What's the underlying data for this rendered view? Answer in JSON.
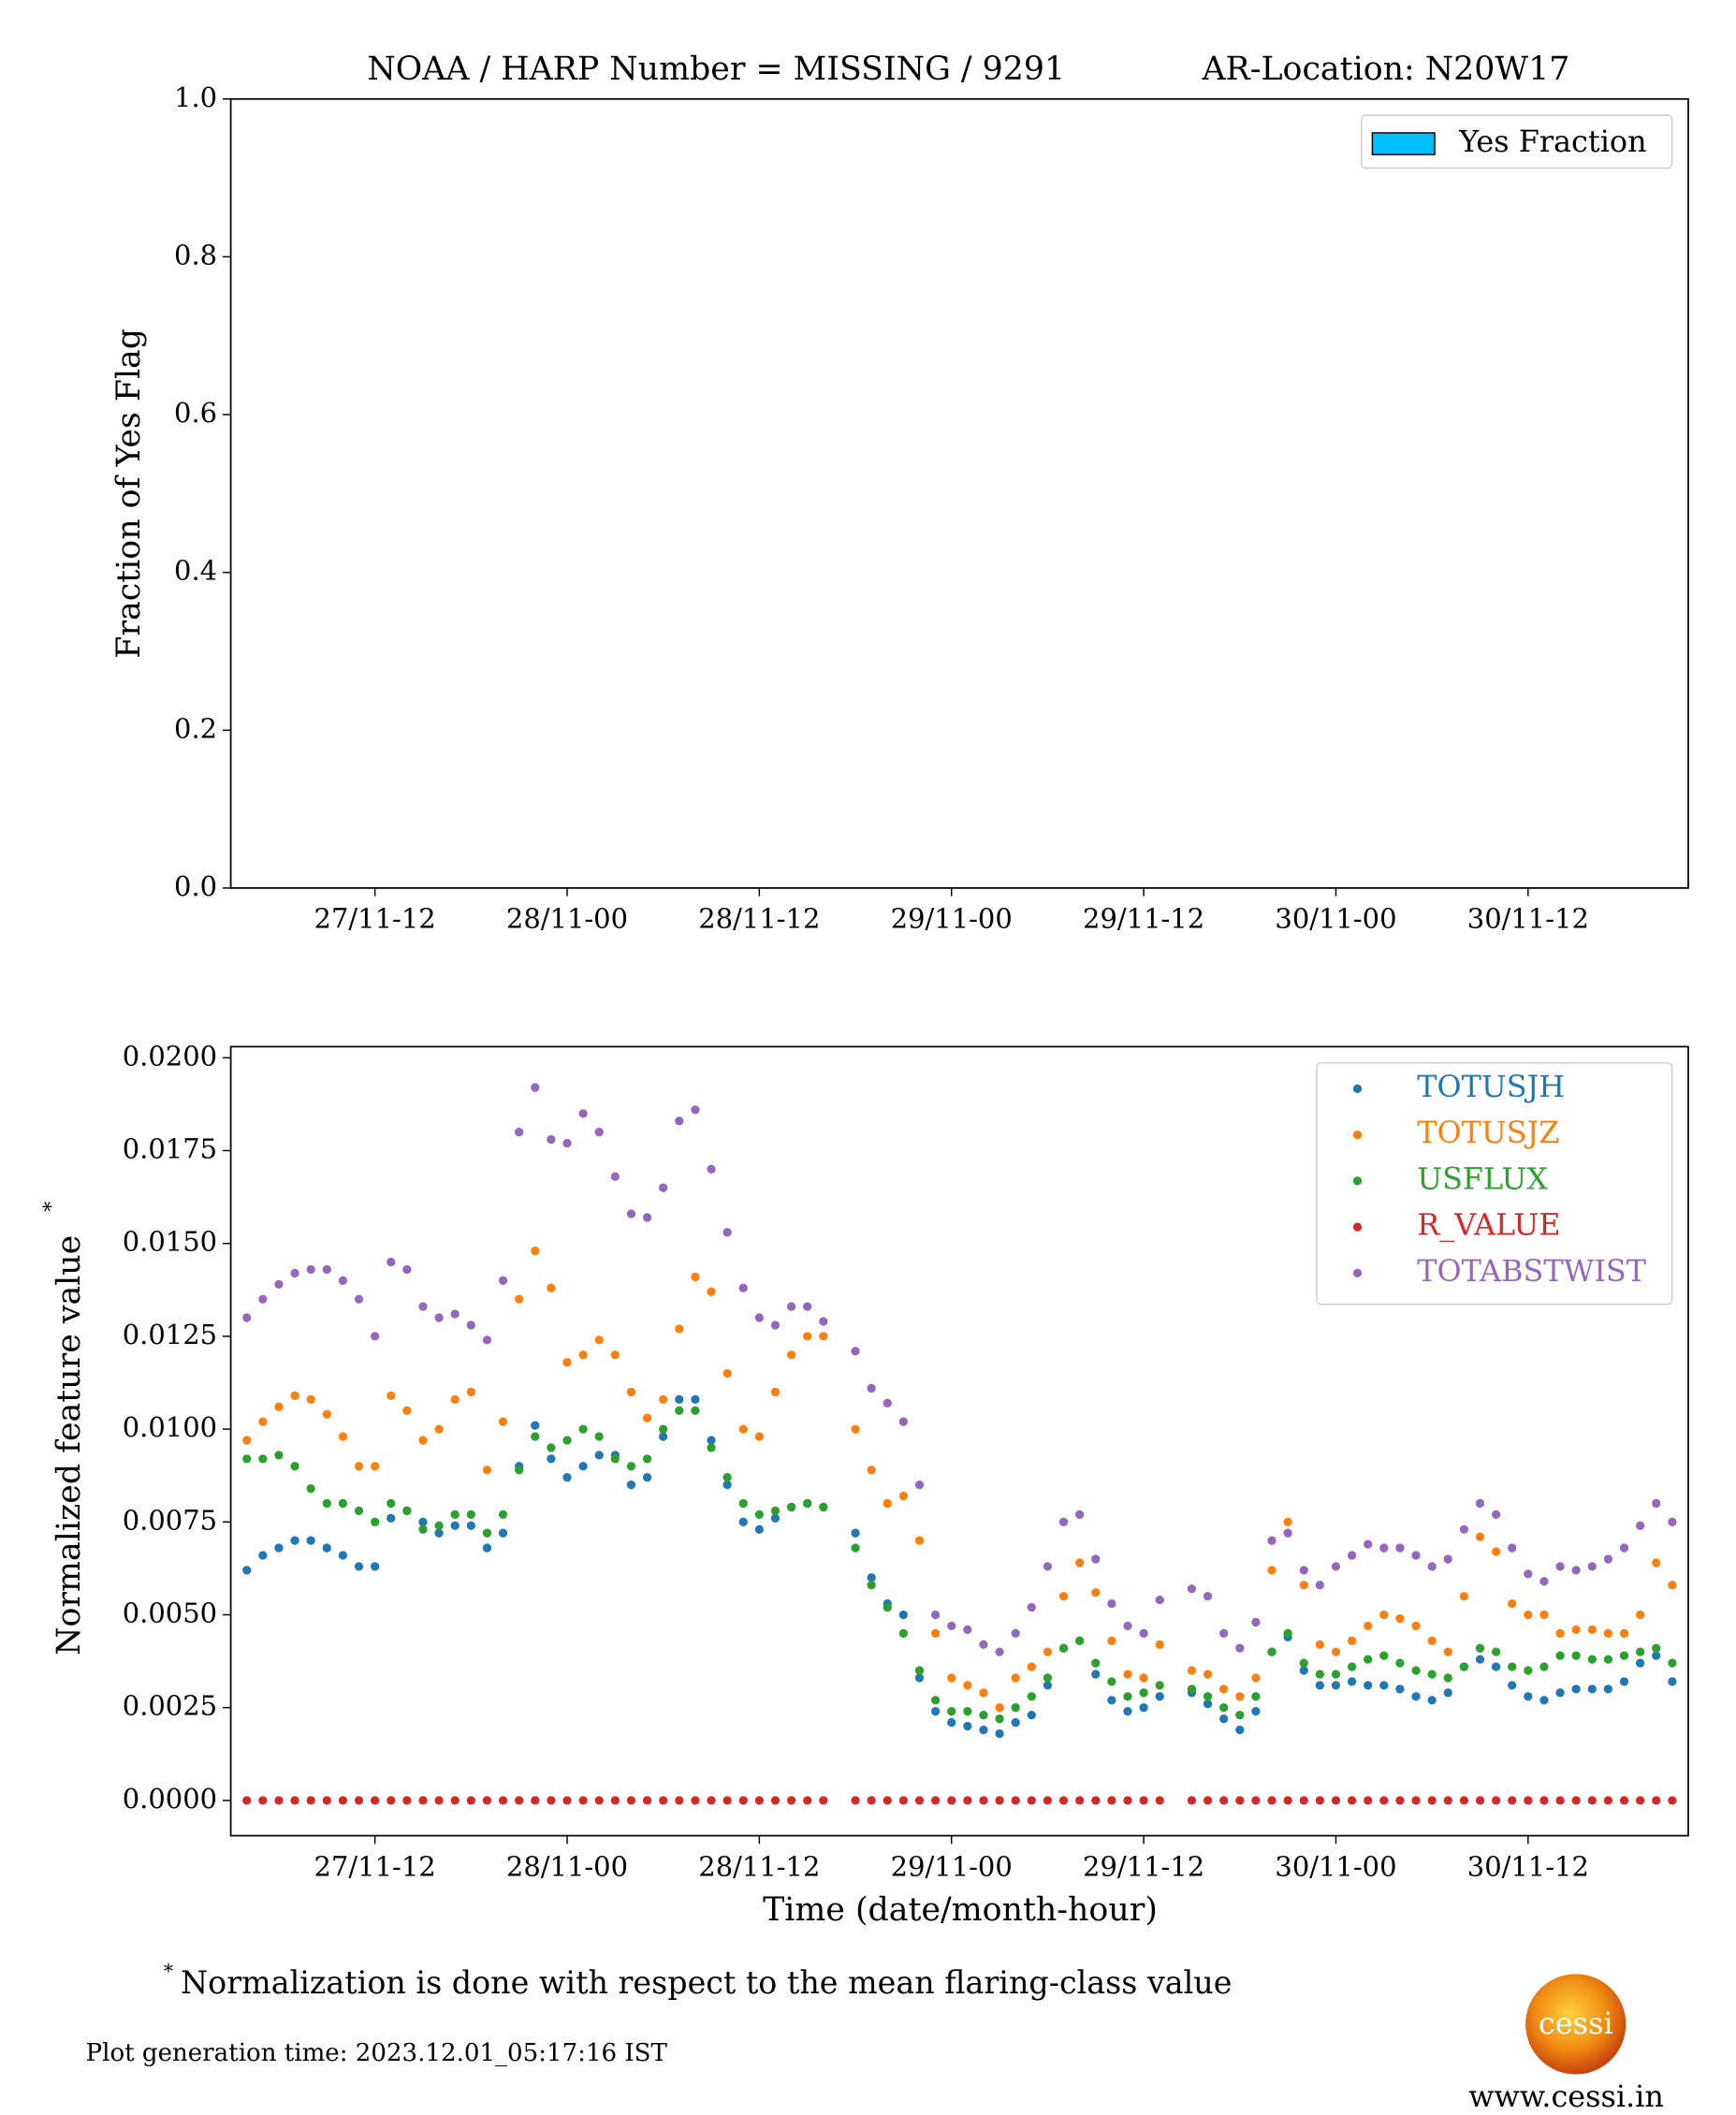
{
  "chart_data": [
    {
      "type": "bar",
      "title": "NOAA / HARP Number = MISSING / 9291",
      "title_right": "AR-Location: N20W17",
      "ylabel": "Fraction of Yes Flag",
      "series": [
        {
          "name": "Yes Fraction",
          "color": "#00bfff"
        }
      ],
      "legend": "upper right",
      "xlim": [
        "27/11-03",
        "30/11-22"
      ],
      "xticks": [
        "27/11-12",
        "28/11-00",
        "28/11-12",
        "29/11-00",
        "29/11-12",
        "30/11-00",
        "30/11-12"
      ],
      "ylim": [
        0,
        1
      ],
      "yticks": [
        {
          "value": 0,
          "label": "0.0"
        },
        0.2,
        0.4,
        0.6,
        0.8,
        {
          "value": 1,
          "label": "1.0"
        }
      ]
    },
    {
      "type": "scatter",
      "xlabel": "Time (date/month-hour)",
      "ylabel": "Normalized feature value",
      "ylabel_mark": "*",
      "legend": "upper right",
      "xlim": [
        "27/11-03",
        "30/11-22"
      ],
      "xticks": [
        "27/11-12",
        "28/11-00",
        "28/11-12",
        "29/11-00",
        "29/11-12",
        "30/11-00",
        "30/11-12"
      ],
      "ylim": [
        -0.00095,
        0.0203
      ],
      "yticks": [
        {
          "value": 0,
          "label": "0.0000"
        },
        {
          "value": 0.0025,
          "label": "0.0025"
        },
        {
          "value": 0.005,
          "label": "0.0050"
        },
        {
          "value": 0.0075,
          "label": "0.0075"
        },
        {
          "value": 0.01,
          "label": "0.0100"
        },
        {
          "value": 0.0125,
          "label": "0.0125"
        },
        {
          "value": 0.015,
          "label": "0.0150"
        },
        {
          "value": 0.0175,
          "label": "0.0175"
        },
        {
          "value": 0.02,
          "label": "0.0200"
        }
      ],
      "x": [
        "27/11-04",
        "27/11-05",
        "27/11-06",
        "27/11-07",
        "27/11-08",
        "27/11-09",
        "27/11-10",
        "27/11-11",
        "27/11-12",
        "27/11-13",
        "27/11-14",
        "27/11-15",
        "27/11-16",
        "27/11-17",
        "27/11-18",
        "27/11-19",
        "27/11-20",
        "27/11-21",
        "27/11-22",
        "27/11-23",
        "28/11-00",
        "28/11-01",
        "28/11-02",
        "28/11-03",
        "28/11-04",
        "28/11-05",
        "28/11-06",
        "28/11-07",
        "28/11-08",
        "28/11-09",
        "28/11-10",
        "28/11-11",
        "28/11-12",
        "28/11-13",
        "28/11-14",
        "28/11-15",
        "28/11-16",
        "28/11-17",
        "28/11-18",
        "28/11-19",
        "28/11-20",
        "28/11-21",
        "28/11-22",
        "28/11-23",
        "29/11-00",
        "29/11-01",
        "29/11-02",
        "29/11-03",
        "29/11-04",
        "29/11-05",
        "29/11-06",
        "29/11-07",
        "29/11-08",
        "29/11-09",
        "29/11-10",
        "29/11-11",
        "29/11-12",
        "29/11-13",
        "29/11-14",
        "29/11-15",
        "29/11-16",
        "29/11-17",
        "29/11-18",
        "29/11-19",
        "29/11-20",
        "29/11-21",
        "29/11-22",
        "29/11-23",
        "30/11-00",
        "30/11-01",
        "30/11-02",
        "30/11-03",
        "30/11-04",
        "30/11-05",
        "30/11-06",
        "30/11-07",
        "30/11-08",
        "30/11-09",
        "30/11-10",
        "30/11-11",
        "30/11-12",
        "30/11-13",
        "30/11-14",
        "30/11-15",
        "30/11-16",
        "30/11-17",
        "30/11-18",
        "30/11-19",
        "30/11-20",
        "30/11-21"
      ],
      "series": [
        {
          "name": "TOTUSJH",
          "color": "#1f77b4",
          "values": [
            0.0062,
            0.0066,
            0.0068,
            0.007,
            0.007,
            0.0068,
            0.0066,
            0.0063,
            0.0063,
            0.0076,
            0.0078,
            0.0075,
            0.0072,
            0.0074,
            0.0074,
            0.0068,
            0.0072,
            0.009,
            0.0101,
            0.0092,
            0.0087,
            0.009,
            0.0093,
            0.0093,
            0.0085,
            0.0087,
            0.0098,
            0.0108,
            0.0108,
            0.0097,
            0.0085,
            0.0075,
            0.0073,
            0.0076,
            0.0079,
            0.008,
            0.0079,
            null,
            0.0072,
            0.006,
            0.0053,
            0.005,
            0.0033,
            0.0024,
            0.0021,
            0.002,
            0.0019,
            0.0018,
            0.0021,
            0.0023,
            0.0031,
            0.0041,
            0.0043,
            0.0034,
            0.0027,
            0.0024,
            0.0025,
            0.0028,
            null,
            0.0029,
            0.0026,
            0.0022,
            0.0019,
            0.0024,
            0.004,
            0.0044,
            0.0035,
            0.0031,
            0.0031,
            0.0032,
            0.0031,
            0.0031,
            0.003,
            0.0028,
            0.0027,
            0.0029,
            0.0036,
            0.0038,
            0.0036,
            0.0031,
            0.0028,
            0.0027,
            0.0029,
            0.003,
            0.003,
            0.003,
            0.0032,
            0.0037,
            0.0039,
            0.0032
          ]
        },
        {
          "name": "TOTUSJZ",
          "color": "#ff7f0e",
          "values": [
            0.0097,
            0.0102,
            0.0106,
            0.0109,
            0.0108,
            0.0104,
            0.0098,
            0.009,
            0.009,
            0.0109,
            0.0105,
            0.0097,
            0.01,
            0.0108,
            0.011,
            0.0089,
            0.0102,
            0.0135,
            0.0148,
            0.0138,
            0.0118,
            0.012,
            0.0124,
            0.012,
            0.011,
            0.0103,
            0.0108,
            0.0127,
            0.0141,
            0.0137,
            0.0115,
            0.01,
            0.0098,
            0.011,
            0.012,
            0.0125,
            0.0125,
            null,
            0.01,
            0.0089,
            0.008,
            0.0082,
            0.007,
            0.0045,
            0.0033,
            0.0031,
            0.0029,
            0.0025,
            0.0033,
            0.0036,
            0.004,
            0.0055,
            0.0064,
            0.0056,
            0.0043,
            0.0034,
            0.0033,
            0.0042,
            null,
            0.0035,
            0.0034,
            0.003,
            0.0028,
            0.0033,
            0.0062,
            0.0075,
            0.0058,
            0.0042,
            0.004,
            0.0043,
            0.0047,
            0.005,
            0.0049,
            0.0047,
            0.0043,
            0.004,
            0.0055,
            0.0071,
            0.0067,
            0.0053,
            0.005,
            0.005,
            0.0045,
            0.0046,
            0.0046,
            0.0045,
            0.0045,
            0.005,
            0.0064,
            0.0058
          ]
        },
        {
          "name": "USFLUX",
          "color": "#2ca02c",
          "values": [
            0.0092,
            0.0092,
            0.0093,
            0.009,
            0.0084,
            0.008,
            0.008,
            0.0078,
            0.0075,
            0.008,
            0.0078,
            0.0073,
            0.0074,
            0.0077,
            0.0077,
            0.0072,
            0.0077,
            0.0089,
            0.0098,
            0.0095,
            0.0097,
            0.01,
            0.0098,
            0.0092,
            0.009,
            0.0092,
            0.01,
            0.0105,
            0.0105,
            0.0095,
            0.0087,
            0.008,
            0.0077,
            0.0078,
            0.0079,
            0.008,
            0.0079,
            null,
            0.0068,
            0.0058,
            0.0052,
            0.0045,
            0.0035,
            0.0027,
            0.0024,
            0.0024,
            0.0023,
            0.0022,
            0.0025,
            0.0028,
            0.0033,
            0.0041,
            0.0043,
            0.0037,
            0.0032,
            0.0028,
            0.0029,
            0.0031,
            null,
            0.003,
            0.0028,
            0.0025,
            0.0023,
            0.0028,
            0.004,
            0.0045,
            0.0037,
            0.0034,
            0.0034,
            0.0036,
            0.0038,
            0.0039,
            0.0037,
            0.0035,
            0.0034,
            0.0033,
            0.0036,
            0.0041,
            0.004,
            0.0036,
            0.0035,
            0.0036,
            0.0039,
            0.0039,
            0.0038,
            0.0038,
            0.0039,
            0.004,
            0.0041,
            0.0037
          ]
        },
        {
          "name": "R_VALUE",
          "color": "#d62728",
          "values": [
            0,
            0,
            0,
            0,
            0,
            0,
            0,
            0,
            0,
            0,
            0,
            0,
            0,
            0,
            0,
            0,
            0,
            0,
            0,
            0,
            0,
            0,
            0,
            0,
            0,
            0,
            0,
            0,
            0,
            0,
            0,
            0,
            0,
            0,
            0,
            0,
            0,
            null,
            0,
            0,
            0,
            0,
            0,
            0,
            0,
            0,
            0,
            0,
            0,
            0,
            0,
            0,
            0,
            0,
            0,
            0,
            0,
            0,
            null,
            0,
            0,
            0,
            0,
            0,
            0,
            0,
            0,
            0,
            0,
            0,
            0,
            0,
            0,
            0,
            0,
            0,
            0,
            0,
            0,
            0,
            0,
            0,
            0,
            0,
            0,
            0,
            0,
            0,
            0,
            0
          ]
        },
        {
          "name": "TOTABSTWIST",
          "color": "#9467bd",
          "values": [
            0.013,
            0.0135,
            0.0139,
            0.0142,
            0.0143,
            0.0143,
            0.014,
            0.0135,
            0.0125,
            0.0145,
            0.0143,
            0.0133,
            0.013,
            0.0131,
            0.0128,
            0.0124,
            0.014,
            0.018,
            0.0192,
            0.0178,
            0.0177,
            0.0185,
            0.018,
            0.0168,
            0.0158,
            0.0157,
            0.0165,
            0.0183,
            0.0186,
            0.017,
            0.0153,
            0.0138,
            0.013,
            0.0128,
            0.0133,
            0.0133,
            0.0129,
            null,
            0.0121,
            0.0111,
            0.0107,
            0.0102,
            0.0085,
            0.005,
            0.0047,
            0.0046,
            0.0042,
            0.004,
            0.0045,
            0.0052,
            0.0063,
            0.0075,
            0.0077,
            0.0065,
            0.0053,
            0.0047,
            0.0045,
            0.0054,
            null,
            0.0057,
            0.0055,
            0.0045,
            0.0041,
            0.0048,
            0.007,
            0.0072,
            0.0062,
            0.0058,
            0.0063,
            0.0066,
            0.0069,
            0.0068,
            0.0068,
            0.0066,
            0.0063,
            0.0065,
            0.0073,
            0.008,
            0.0077,
            0.0068,
            0.0061,
            0.0059,
            0.0063,
            0.0062,
            0.0063,
            0.0065,
            0.0068,
            0.0074,
            0.008,
            0.0075
          ]
        }
      ]
    }
  ],
  "footnote_mark": "*",
  "footnote": "Normalization is done with respect to the mean flaring-class value",
  "generation_time": "Plot generation time: 2023.12.01_05:17:16 IST",
  "logo_text": "cessi",
  "website": "www.cessi.in"
}
